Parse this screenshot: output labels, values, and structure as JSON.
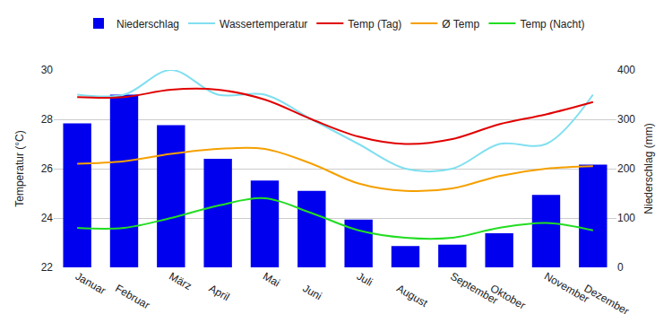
{
  "chart_data": {
    "type": "bar+line",
    "categories": [
      "Januar",
      "Februar",
      "März",
      "April",
      "Mai",
      "Juni",
      "Juli",
      "August",
      "September",
      "Oktober",
      "November",
      "Dezember"
    ],
    "y_label": "Temperatur (°C)",
    "y2_label": "Niederschlag (mm)",
    "ylim": [
      22,
      30
    ],
    "yticks": [
      22,
      24,
      26,
      28,
      30
    ],
    "y2lim": [
      0,
      400
    ],
    "y2ticks": [
      0,
      100,
      200,
      300,
      400
    ],
    "grid": true,
    "legend": "top",
    "series": [
      {
        "name": "Niederschlag",
        "type": "bar",
        "axis": "y2",
        "color": "#0000ee",
        "values": [
          292,
          350,
          288,
          220,
          176,
          155,
          97,
          43,
          46,
          69,
          147,
          208
        ]
      },
      {
        "name": "Wassertemperatur",
        "type": "line",
        "color": "#80dff0",
        "values": [
          29.0,
          29.0,
          30.0,
          29.0,
          29.0,
          28.0,
          27.0,
          26.0,
          26.0,
          27.0,
          27.0,
          29.0
        ]
      },
      {
        "name": "Temp (Tag)",
        "type": "line",
        "color": "#e00000",
        "values": [
          28.9,
          28.9,
          29.2,
          29.2,
          28.8,
          28.0,
          27.3,
          27.0,
          27.2,
          27.8,
          28.2,
          28.7
        ]
      },
      {
        "name": "Ø Temp",
        "type": "line",
        "color": "#f5a000",
        "values": [
          26.2,
          26.3,
          26.6,
          26.8,
          26.8,
          26.2,
          25.4,
          25.1,
          25.2,
          25.7,
          26.0,
          26.1
        ]
      },
      {
        "name": "Temp (Nacht)",
        "type": "line",
        "color": "#22dd22",
        "values": [
          23.6,
          23.6,
          24.0,
          24.5,
          24.8,
          24.2,
          23.5,
          23.2,
          23.2,
          23.6,
          23.8,
          23.5
        ]
      }
    ]
  }
}
